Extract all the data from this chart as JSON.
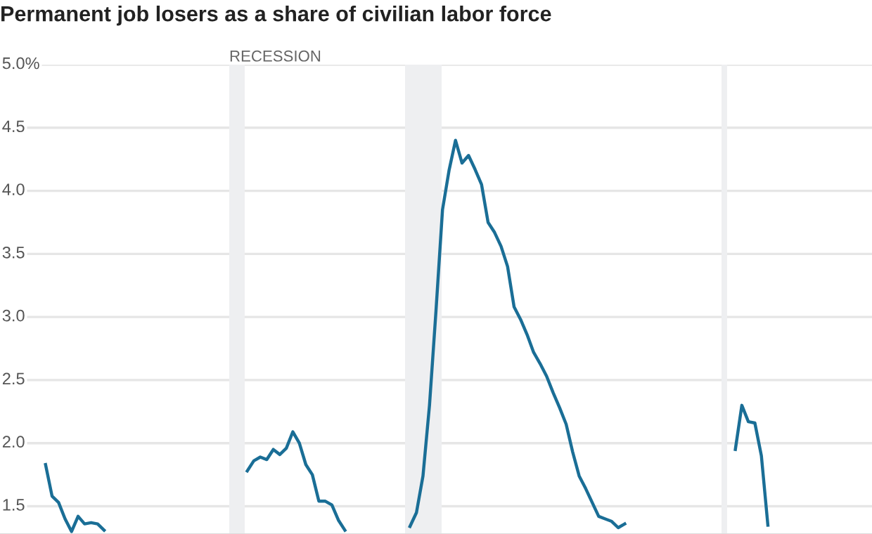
{
  "chart_data": {
    "type": "line",
    "title": "Permanent job losers as a share of civilian labor force",
    "categories": [
      null,
      null,
      null,
      null,
      null,
      null,
      null,
      null,
      null,
      null,
      null,
      null,
      null,
      null,
      null,
      null,
      null,
      null,
      null,
      null,
      null,
      null,
      null,
      null,
      null,
      null,
      null,
      null,
      null,
      null,
      null,
      null,
      null,
      null,
      null,
      null,
      null,
      null,
      null,
      null,
      null,
      null,
      null,
      null,
      null,
      null,
      null,
      null,
      null,
      null,
      null,
      null,
      null,
      null,
      null,
      null,
      null,
      null,
      null,
      null,
      null,
      null,
      null,
      null,
      null,
      null,
      null,
      null,
      null,
      null,
      null,
      null,
      null,
      null,
      null,
      null,
      null,
      null,
      null,
      null,
      null,
      null,
      null,
      null,
      null,
      null,
      null,
      null,
      null,
      null,
      null,
      null,
      null,
      null,
      null,
      null,
      null,
      null,
      null,
      null,
      null,
      null,
      null,
      null,
      null,
      null,
      null,
      null,
      null,
      null,
      null,
      null,
      null,
      null,
      null,
      null,
      null,
      null,
      null,
      null,
      null,
      null,
      null,
      null,
      null,
      null,
      null,
      null,
      null,
      null,
      null,
      null,
      null,
      null,
      null
    ],
    "series": [
      {
        "color": "#1a6e96",
        "values": [
          null,
          null,
          null,
          null,
          null,
          null,
          null,
          1.83,
          1.58,
          1.53,
          1.4,
          1.3,
          1.42,
          1.36,
          1.37,
          1.36,
          1.31,
          null,
          null,
          null,
          null,
          null,
          null,
          null,
          null,
          null,
          null,
          null,
          null,
          null,
          null,
          null,
          null,
          null,
          null,
          null,
          null,
          null,
          1.78,
          1.86,
          1.89,
          1.87,
          1.95,
          1.91,
          1.96,
          2.09,
          2.0,
          1.83,
          1.75,
          1.54,
          1.54,
          1.51,
          1.39,
          1.31,
          null,
          null,
          null,
          null,
          null,
          null,
          null,
          null,
          null,
          1.34,
          1.45,
          1.74,
          2.3,
          3.05,
          3.85,
          4.16,
          4.4,
          4.22,
          4.28,
          4.17,
          4.05,
          3.75,
          3.67,
          3.56,
          3.4,
          3.08,
          2.98,
          2.86,
          2.72,
          2.63,
          2.53,
          2.4,
          2.28,
          2.15,
          1.93,
          1.74,
          1.64,
          1.53,
          1.42,
          1.4,
          1.38,
          1.33,
          1.36,
          null,
          null,
          null,
          null,
          null,
          null,
          null,
          null,
          null,
          null,
          null,
          null,
          null,
          null,
          null,
          null,
          1.95,
          2.3,
          2.17,
          2.16,
          1.9,
          1.35,
          null,
          null,
          null,
          null,
          null,
          null,
          null,
          null,
          null,
          null,
          null,
          null,
          null,
          null,
          null,
          null
        ]
      }
    ],
    "ylim": [
      1.28,
      5.0
    ],
    "yticks": [
      {
        "value": 1.5,
        "label": "1.5"
      },
      {
        "value": 2.0,
        "label": "2.0"
      },
      {
        "value": 2.5,
        "label": "2.5"
      },
      {
        "value": 3.0,
        "label": "3.0"
      },
      {
        "value": 3.5,
        "label": "3.5"
      },
      {
        "value": 4.0,
        "label": "4.0"
      },
      {
        "value": 4.5,
        "label": "4.5"
      },
      {
        "value": 5.0,
        "label": "5.0%"
      }
    ],
    "annotations": [
      "RECESSION"
    ],
    "grid": "y",
    "tick_labels": "y",
    "line_style": "solid"
  }
}
